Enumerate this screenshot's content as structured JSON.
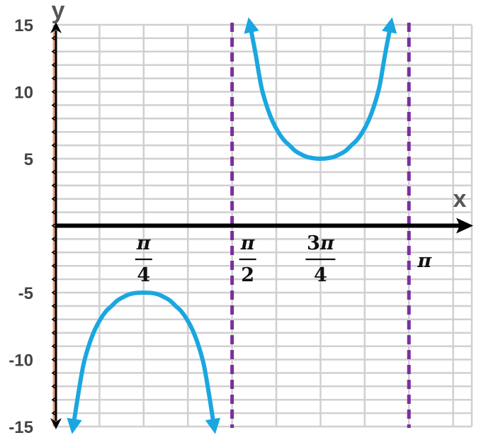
{
  "chart_data": {
    "type": "line",
    "function_shape": "y = 5·csc(2x)",
    "xlabel": "x",
    "ylabel": "y",
    "xlim": [
      0,
      3.7
    ],
    "ylim": [
      -15,
      15
    ],
    "grid": true,
    "y_ticks": [
      {
        "value": 15,
        "label": "15"
      },
      {
        "value": 10,
        "label": "10"
      },
      {
        "value": 5,
        "label": "5"
      },
      {
        "value": -5,
        "label": "-5"
      },
      {
        "value": -10,
        "label": "-10"
      },
      {
        "value": -15,
        "label": "-15"
      }
    ],
    "x_ticks": [
      {
        "value": 0.7854,
        "num": "π",
        "den": "4",
        "fraction": true
      },
      {
        "value": 1.5708,
        "num": "π",
        "den": "2",
        "fraction": true
      },
      {
        "value": 2.3562,
        "num": "3π",
        "den": "4",
        "fraction": true
      },
      {
        "value": 3.1416,
        "num": "π",
        "den": "",
        "fraction": false
      }
    ],
    "asymptotes": [
      {
        "x": 1.5708
      },
      {
        "x": 3.1416
      }
    ],
    "series": [
      {
        "x": [
          0.16,
          0.2,
          0.25,
          0.3,
          0.35,
          0.4,
          0.45,
          0.5,
          0.55,
          0.6,
          0.65,
          0.7,
          0.7854,
          0.87,
          0.92,
          0.97,
          1.02,
          1.07,
          1.12,
          1.17,
          1.22,
          1.27,
          1.32,
          1.37,
          1.41
        ],
        "y": [
          -15,
          -12.8,
          -10.4,
          -8.9,
          -7.8,
          -7.0,
          -6.4,
          -6.0,
          -5.6,
          -5.35,
          -5.15,
          -5.04,
          -5,
          -5.04,
          -5.15,
          -5.35,
          -5.6,
          -6.0,
          -6.4,
          -7.0,
          -7.8,
          -8.9,
          -10.4,
          -12.8,
          -15
        ]
      },
      {
        "x": [
          1.73,
          1.78,
          1.83,
          1.88,
          1.93,
          1.98,
          2.03,
          2.08,
          2.13,
          2.18,
          2.25,
          2.3562,
          2.46,
          2.53,
          2.58,
          2.63,
          2.68,
          2.73,
          2.78,
          2.83,
          2.88,
          2.93,
          2.98
        ],
        "y": [
          15,
          12.8,
          10.4,
          8.9,
          7.8,
          7.0,
          6.4,
          6.0,
          5.6,
          5.35,
          5.1,
          5,
          5.1,
          5.35,
          5.6,
          6.0,
          6.4,
          7.0,
          7.8,
          8.9,
          10.4,
          12.8,
          15
        ]
      }
    ],
    "colors": {
      "curve": "#1aa7e0",
      "asymptote": "#7b2f9e",
      "axis": "#000000",
      "grid": "#d0d0d0",
      "y_axis_edge": "#e8a07a"
    }
  }
}
